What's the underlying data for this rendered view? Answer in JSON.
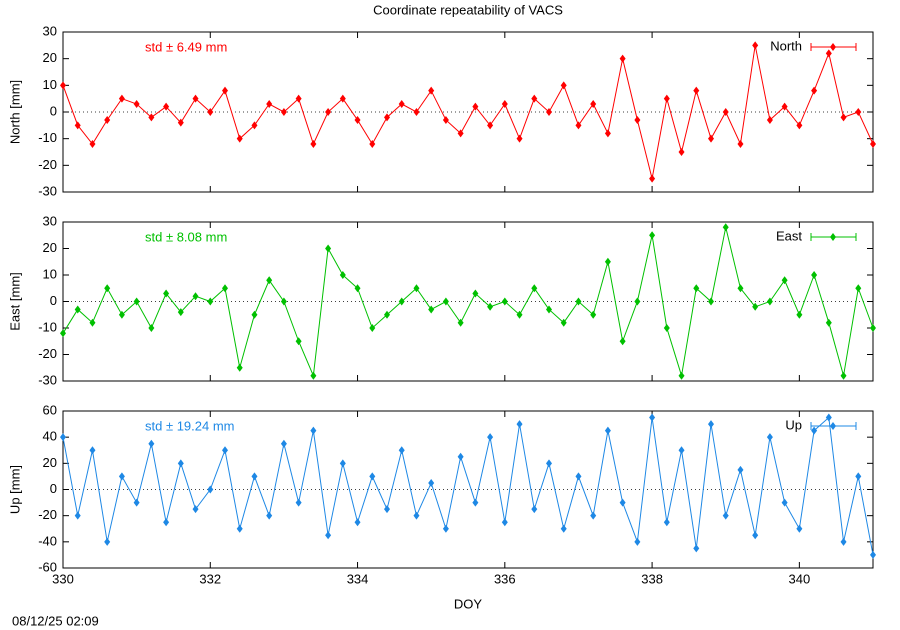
{
  "footer": "08/12/25 02:09",
  "chart_data": [
    {
      "type": "line",
      "title": "Coordinate repeatability of VACS",
      "y_label": "North [mm]",
      "annotation": "std ± 6.49 mm",
      "xlim": [
        330,
        341
      ],
      "xticks": [
        330,
        332,
        334,
        336,
        338,
        340
      ],
      "ylim": [
        -30,
        30
      ],
      "yticks": [
        -30,
        -20,
        -10,
        0,
        10,
        20,
        30
      ],
      "series": [
        {
          "name": "North",
          "color": "#ff0000",
          "x": [
            330,
            330.2,
            330.4,
            330.6,
            330.8,
            331,
            331.2,
            331.4,
            331.6,
            331.8,
            332,
            332.2,
            332.4,
            332.6,
            332.8,
            333,
            333.2,
            333.4,
            333.6,
            333.8,
            334,
            334.2,
            334.4,
            334.6,
            334.8,
            335,
            335.2,
            335.4,
            335.6,
            335.8,
            336,
            336.2,
            336.4,
            336.6,
            336.8,
            337,
            337.2,
            337.4,
            337.6,
            337.8,
            338,
            338.2,
            338.4,
            338.6,
            338.8,
            339,
            339.2,
            339.4,
            339.6,
            339.8,
            340,
            340.2,
            340.4,
            340.6,
            340.8,
            341
          ],
          "values": [
            10,
            -5,
            -12,
            -3,
            5,
            3,
            -2,
            2,
            -4,
            5,
            0,
            8,
            -10,
            -5,
            3,
            0,
            5,
            -12,
            0,
            5,
            -3,
            -12,
            -2,
            3,
            0,
            8,
            -3,
            -8,
            2,
            -5,
            3,
            -10,
            5,
            0,
            10,
            -5,
            3,
            -8,
            20,
            -3,
            -25,
            5,
            -15,
            8,
            -10,
            0,
            -12,
            25,
            -3,
            2,
            -5,
            8,
            22,
            -2,
            0,
            -12
          ]
        }
      ]
    },
    {
      "type": "line",
      "y_label": "East [mm]",
      "annotation": "std ± 8.08 mm",
      "xlim": [
        330,
        341
      ],
      "xticks": [
        330,
        332,
        334,
        336,
        338,
        340
      ],
      "ylim": [
        -30,
        30
      ],
      "yticks": [
        -30,
        -20,
        -10,
        0,
        10,
        20,
        30
      ],
      "series": [
        {
          "name": "East",
          "color": "#00c000",
          "x": [
            330,
            330.2,
            330.4,
            330.6,
            330.8,
            331,
            331.2,
            331.4,
            331.6,
            331.8,
            332,
            332.2,
            332.4,
            332.6,
            332.8,
            333,
            333.2,
            333.4,
            333.6,
            333.8,
            334,
            334.2,
            334.4,
            334.6,
            334.8,
            335,
            335.2,
            335.4,
            335.6,
            335.8,
            336,
            336.2,
            336.4,
            336.6,
            336.8,
            337,
            337.2,
            337.4,
            337.6,
            337.8,
            338,
            338.2,
            338.4,
            338.6,
            338.8,
            339,
            339.2,
            339.4,
            339.6,
            339.8,
            340,
            340.2,
            340.4,
            340.6,
            340.8,
            341
          ],
          "values": [
            -12,
            -3,
            -8,
            5,
            -5,
            0,
            -10,
            3,
            -4,
            2,
            0,
            5,
            -25,
            -5,
            8,
            0,
            -15,
            -28,
            20,
            10,
            5,
            -10,
            -5,
            0,
            5,
            -3,
            0,
            -8,
            3,
            -2,
            0,
            -5,
            5,
            -3,
            -8,
            0,
            -5,
            15,
            -15,
            0,
            25,
            -10,
            -28,
            5,
            0,
            28,
            5,
            -2,
            0,
            8,
            -5,
            10,
            -8,
            -28,
            5,
            -10
          ]
        }
      ]
    },
    {
      "type": "line",
      "y_label": "Up [mm]",
      "x_label": "DOY",
      "annotation": "std ± 19.24 mm",
      "xlim": [
        330,
        341
      ],
      "xticks": [
        330,
        332,
        334,
        336,
        338,
        340
      ],
      "ylim": [
        -60,
        60
      ],
      "yticks": [
        -60,
        -40,
        -20,
        0,
        20,
        40,
        60
      ],
      "series": [
        {
          "name": "Up",
          "color": "#1e88e5",
          "x": [
            330,
            330.2,
            330.4,
            330.6,
            330.8,
            331,
            331.2,
            331.4,
            331.6,
            331.8,
            332,
            332.2,
            332.4,
            332.6,
            332.8,
            333,
            333.2,
            333.4,
            333.6,
            333.8,
            334,
            334.2,
            334.4,
            334.6,
            334.8,
            335,
            335.2,
            335.4,
            335.6,
            335.8,
            336,
            336.2,
            336.4,
            336.6,
            336.8,
            337,
            337.2,
            337.4,
            337.6,
            337.8,
            338,
            338.2,
            338.4,
            338.6,
            338.8,
            339,
            339.2,
            339.4,
            339.6,
            339.8,
            340,
            340.2,
            340.4,
            340.6,
            340.8,
            341
          ],
          "values": [
            40,
            -20,
            30,
            -40,
            10,
            -10,
            35,
            -25,
            20,
            -15,
            0,
            30,
            -30,
            10,
            -20,
            35,
            -10,
            45,
            -35,
            20,
            -25,
            10,
            -15,
            30,
            -20,
            5,
            -30,
            25,
            -10,
            40,
            -25,
            50,
            -15,
            20,
            -30,
            10,
            -20,
            45,
            -10,
            -40,
            55,
            -25,
            30,
            -45,
            50,
            -20,
            15,
            -35,
            40,
            -10,
            -30,
            45,
            55,
            -40,
            10,
            -50
          ]
        }
      ]
    }
  ]
}
